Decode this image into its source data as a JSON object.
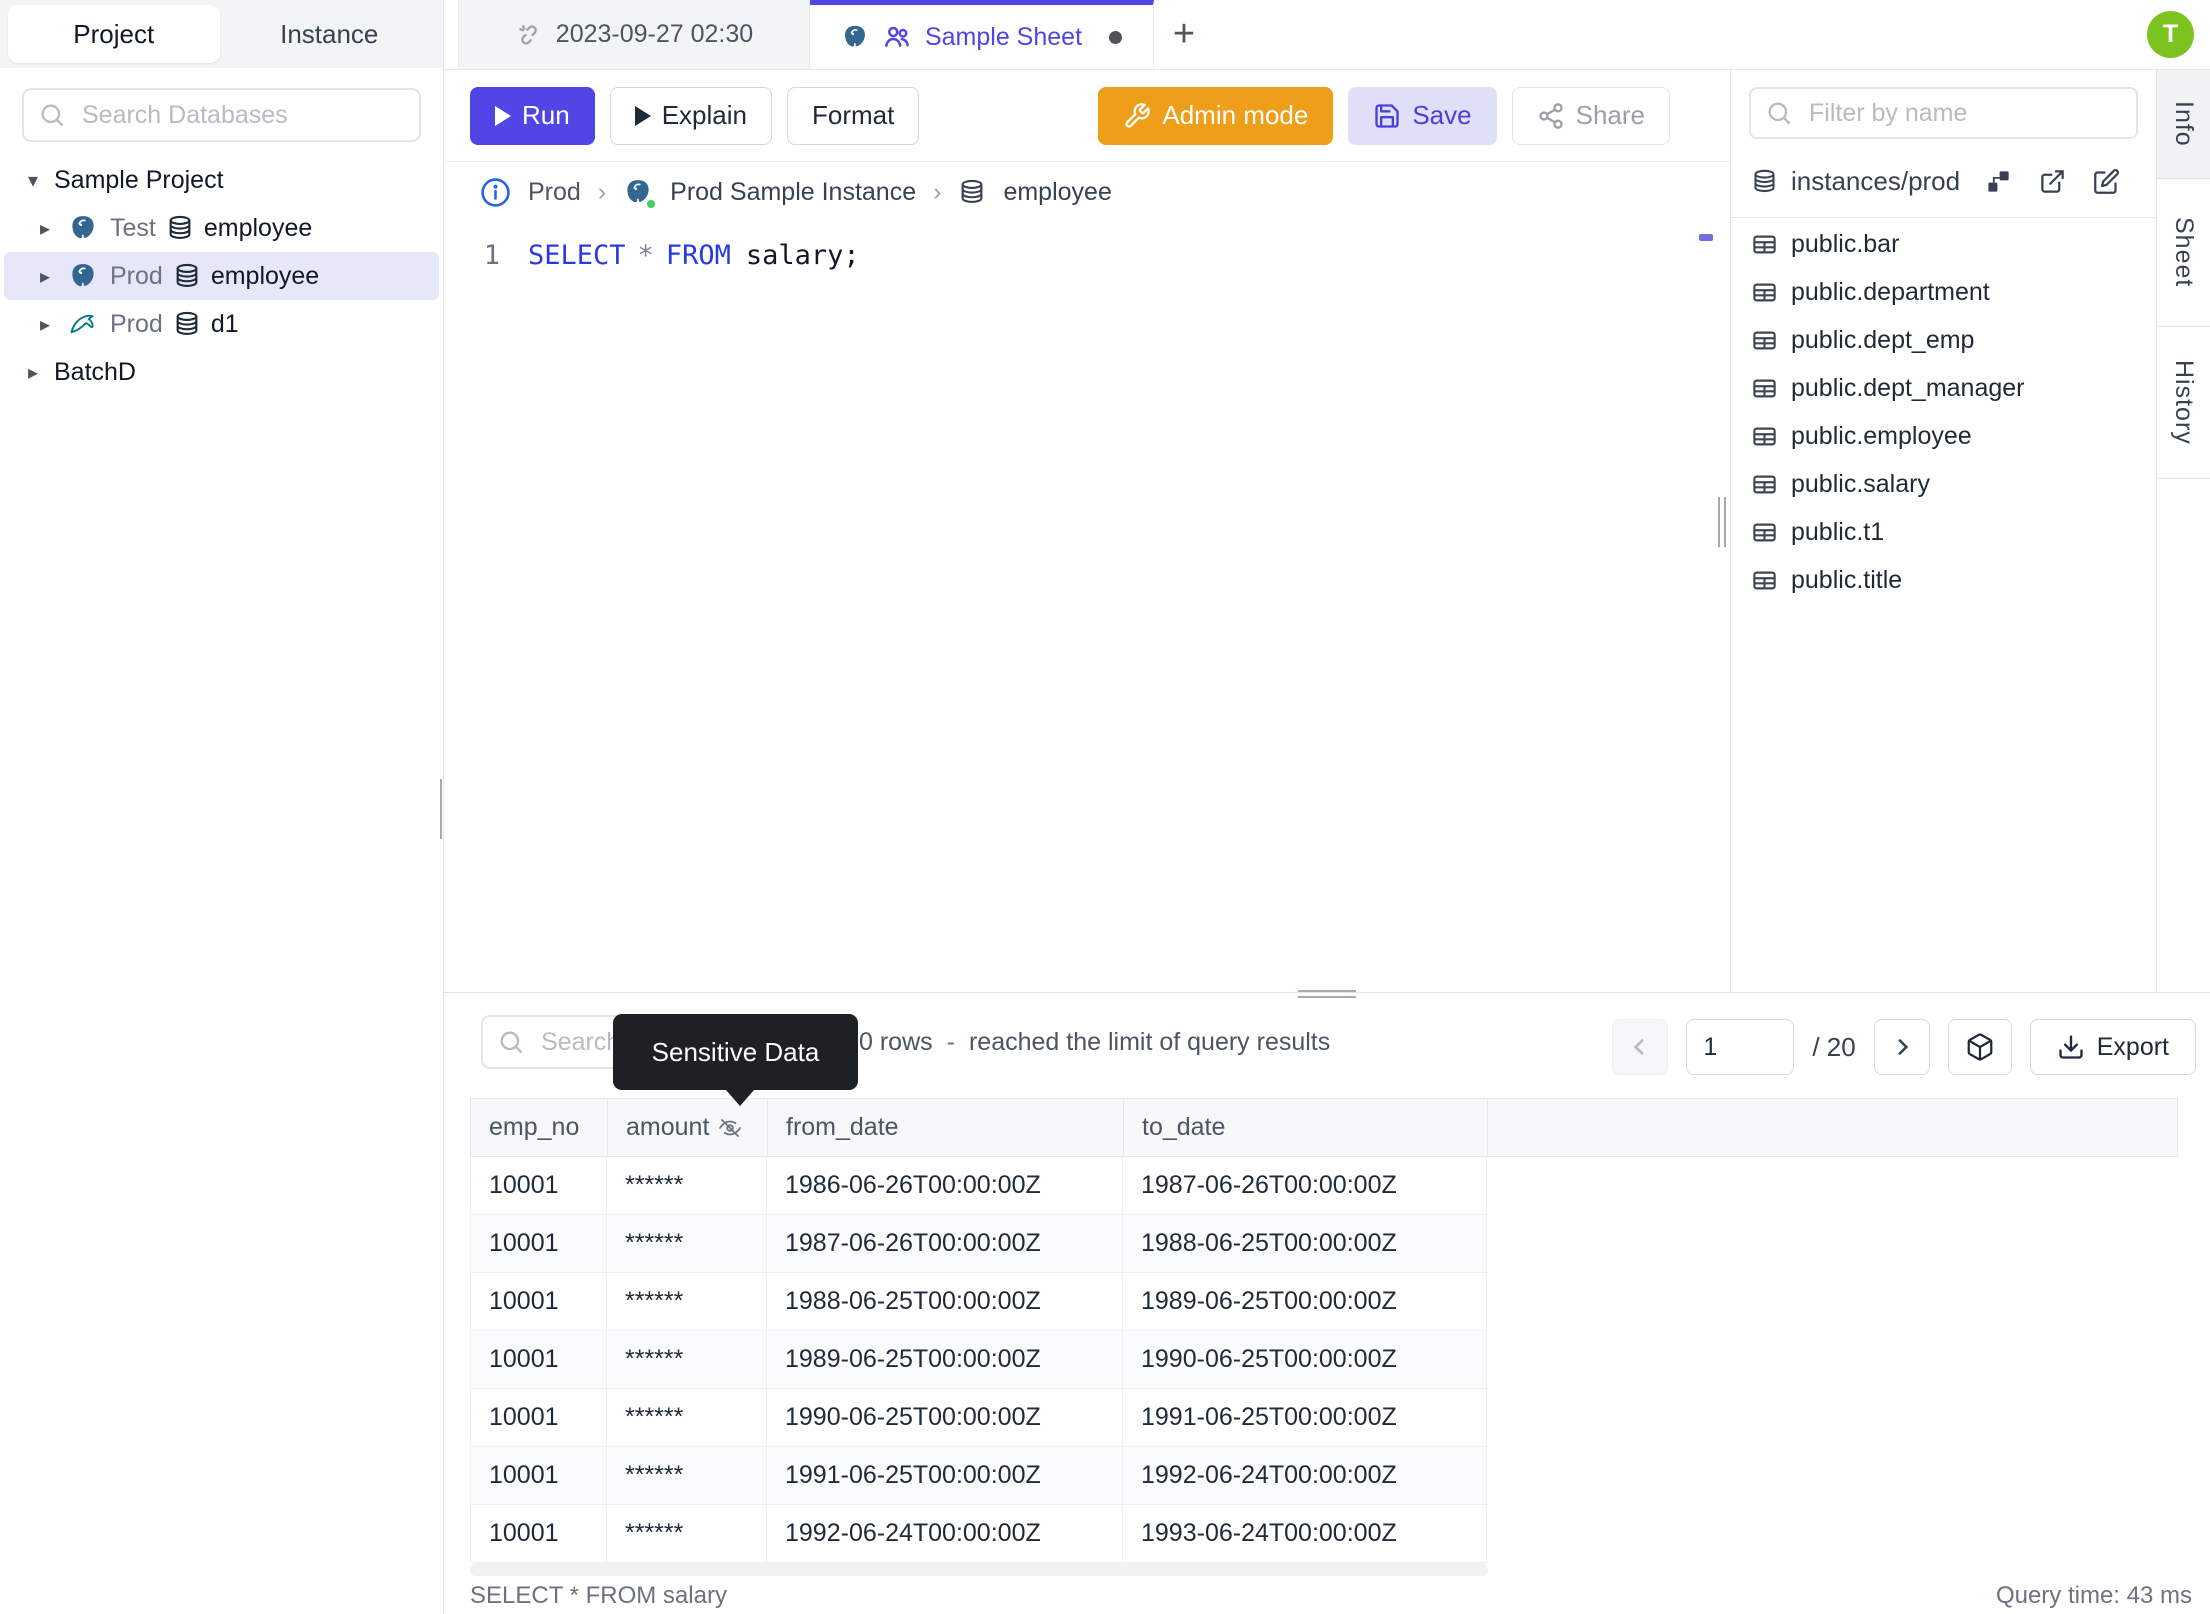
{
  "app": {
    "avatar_initial": "T"
  },
  "sidebar": {
    "tabs": {
      "project": "Project",
      "instance": "Instance"
    },
    "search_placeholder": "Search Databases",
    "tree": {
      "project1": "Sample Project",
      "row_test": {
        "env": "Test",
        "db": "employee"
      },
      "row_prod_employee": {
        "env": "Prod",
        "db": "employee"
      },
      "row_prod_d1": {
        "env": "Prod",
        "db": "d1"
      },
      "project2": "BatchD"
    }
  },
  "tabbar": {
    "tab1": "2023-09-27 02:30",
    "tab2": "Sample Sheet",
    "new_tab": "+"
  },
  "toolbar": {
    "run": "Run",
    "explain": "Explain",
    "format": "Format",
    "admin_mode": "Admin mode",
    "save": "Save",
    "share": "Share"
  },
  "breadcrumb": {
    "env": "Prod",
    "instance": "Prod Sample Instance",
    "database": "employee"
  },
  "editor": {
    "line_number": "1",
    "kw_select": "SELECT",
    "star": "*",
    "kw_from": "FROM",
    "tail": "salary;"
  },
  "right_panel": {
    "filter_placeholder": "Filter by name",
    "connection": "instances/prod",
    "tables": [
      "public.bar",
      "public.department",
      "public.dept_emp",
      "public.dept_manager",
      "public.employee",
      "public.salary",
      "public.t1",
      "public.title"
    ]
  },
  "side_tabs": {
    "info": "Info",
    "sheet": "Sheet",
    "history": "History"
  },
  "results": {
    "search_placeholder": "Search",
    "tooltip": "Sensitive Data",
    "rows_count": "0 rows",
    "separator": "-",
    "limit_note": "reached the limit of query results",
    "page": "1",
    "page_total": "/ 20",
    "export": "Export",
    "grid": {
      "columns": [
        "emp_no",
        "amount",
        "from_date",
        "to_date"
      ],
      "rows": [
        [
          "10001",
          "******",
          "1986-06-26T00:00:00Z",
          "1987-06-26T00:00:00Z"
        ],
        [
          "10001",
          "******",
          "1987-06-26T00:00:00Z",
          "1988-06-25T00:00:00Z"
        ],
        [
          "10001",
          "******",
          "1988-06-25T00:00:00Z",
          "1989-06-25T00:00:00Z"
        ],
        [
          "10001",
          "******",
          "1989-06-25T00:00:00Z",
          "1990-06-25T00:00:00Z"
        ],
        [
          "10001",
          "******",
          "1990-06-25T00:00:00Z",
          "1991-06-25T00:00:00Z"
        ],
        [
          "10001",
          "******",
          "1991-06-25T00:00:00Z",
          "1992-06-24T00:00:00Z"
        ],
        [
          "10001",
          "******",
          "1992-06-24T00:00:00Z",
          "1993-06-24T00:00:00Z"
        ]
      ]
    },
    "footer_query": "SELECT * FROM salary",
    "footer_time": "Query time: 43 ms"
  }
}
